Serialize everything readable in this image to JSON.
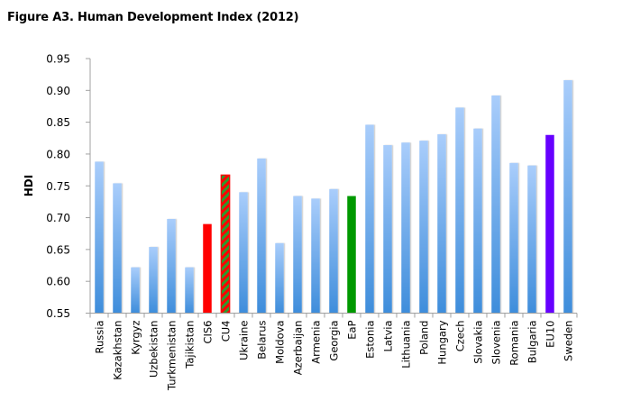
{
  "figure": {
    "title": "Figure A3. Human Development Index (2012)"
  },
  "chart_data": {
    "type": "bar",
    "title": "Figure A3. Human Development Index (2012)",
    "xlabel": "",
    "ylabel": "HDI",
    "ylim": [
      0.55,
      0.95
    ],
    "yticks": [
      "0.55",
      "0.60",
      "0.65",
      "0.70",
      "0.75",
      "0.80",
      "0.85",
      "0.90",
      "0.95"
    ],
    "ytick_values": [
      0.55,
      0.6,
      0.65,
      0.7,
      0.75,
      0.8,
      0.85,
      0.9,
      0.95
    ],
    "grid": false,
    "legend": "none",
    "categories": [
      "Russia",
      "Kazakhstan",
      "Kyrgyz",
      "Uzbekistan",
      "Turkmenistan",
      "Tajikistan",
      "CIS6",
      "CU4",
      "Ukraine",
      "Belarus",
      "Moldova",
      "Azerbaijan",
      "Armenia",
      "Georgia",
      "EaP",
      "Estonia",
      "Latvia",
      "Lithuania",
      "Poland",
      "Hungary",
      "Czech",
      "Slovakia",
      "Slovenia",
      "Romania",
      "Bulgaria",
      "EU10",
      "Sweden"
    ],
    "values": [
      0.788,
      0.754,
      0.622,
      0.654,
      0.698,
      0.622,
      0.69,
      0.767,
      0.74,
      0.793,
      0.66,
      0.734,
      0.73,
      0.745,
      0.734,
      0.846,
      0.814,
      0.818,
      0.821,
      0.831,
      0.873,
      0.84,
      0.892,
      0.786,
      0.782,
      0.83,
      0.916
    ],
    "bar_styles": [
      "gradient",
      "gradient",
      "gradient",
      "gradient",
      "gradient",
      "gradient",
      "red",
      "red-green-hatch",
      "gradient",
      "gradient",
      "gradient",
      "gradient",
      "gradient",
      "gradient",
      "green",
      "gradient",
      "gradient",
      "gradient",
      "gradient",
      "gradient",
      "gradient",
      "gradient",
      "gradient",
      "gradient",
      "gradient",
      "purple",
      "gradient"
    ],
    "colors": {
      "gradient_top": "#a9cdfb",
      "gradient_bottom": "#3e8ddb",
      "red": "#ff0000",
      "green": "#009900",
      "purple": "#6600ff",
      "hatch_red": "#ff0000",
      "hatch_green": "#2e9a2e",
      "axis": "#a0a0a0"
    }
  }
}
